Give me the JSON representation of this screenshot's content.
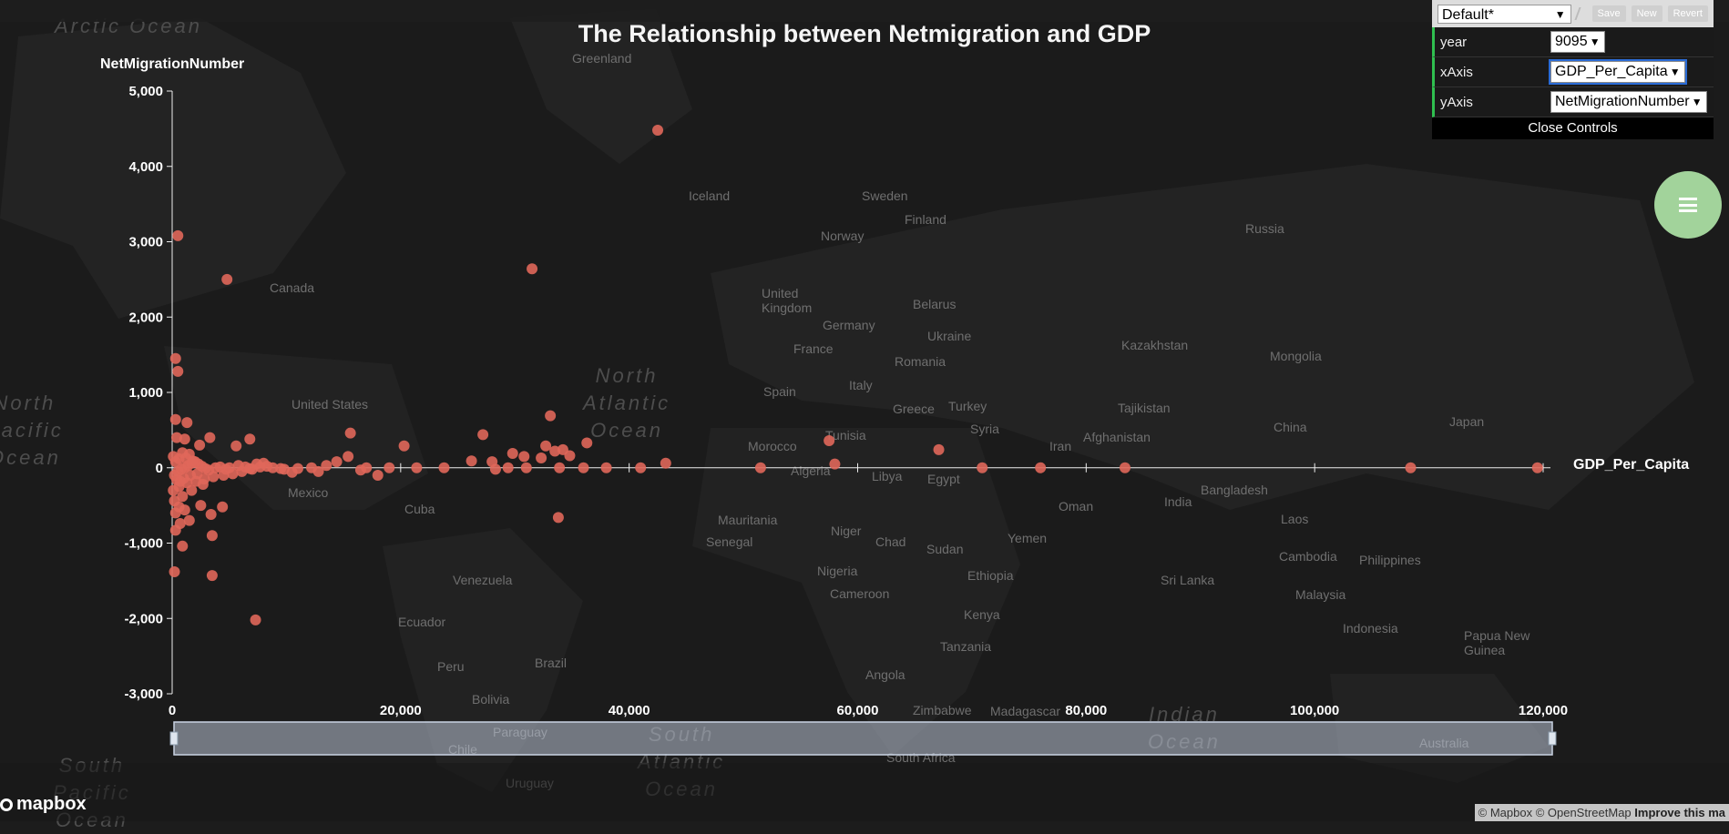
{
  "map": {
    "labels": [
      {
        "text": "Arctic Ocean",
        "cls": "ocean",
        "x": 60,
        "y": 14
      },
      {
        "text": "Greenland",
        "cls": "",
        "x": 628,
        "y": 56
      },
      {
        "text": "Iceland",
        "cls": "",
        "x": 756,
        "y": 207
      },
      {
        "text": "Sweden",
        "cls": "",
        "x": 946,
        "y": 207
      },
      {
        "text": "Finland",
        "cls": "",
        "x": 993,
        "y": 233
      },
      {
        "text": "Norway",
        "cls": "",
        "x": 901,
        "y": 251
      },
      {
        "text": "Russia",
        "cls": "",
        "x": 1367,
        "y": 243
      },
      {
        "text": "Canada",
        "cls": "",
        "x": 296,
        "y": 308
      },
      {
        "text": "United\nKingdom",
        "cls": "",
        "x": 836,
        "y": 314
      },
      {
        "text": "Belarus",
        "cls": "",
        "x": 1002,
        "y": 326
      },
      {
        "text": "Germany",
        "cls": "",
        "x": 903,
        "y": 349
      },
      {
        "text": "Ukraine",
        "cls": "",
        "x": 1018,
        "y": 361
      },
      {
        "text": "Kazakhstan",
        "cls": "",
        "x": 1231,
        "y": 371
      },
      {
        "text": "Mongolia",
        "cls": "",
        "x": 1394,
        "y": 383
      },
      {
        "text": "France",
        "cls": "",
        "x": 871,
        "y": 375
      },
      {
        "text": "Romania",
        "cls": "",
        "x": 982,
        "y": 389
      },
      {
        "text": "North\nAtlantic\nOcean",
        "cls": "ocean",
        "x": 640,
        "y": 398
      },
      {
        "text": "Spain",
        "cls": "",
        "x": 838,
        "y": 422
      },
      {
        "text": "Italy",
        "cls": "",
        "x": 932,
        "y": 415
      },
      {
        "text": "United States",
        "cls": "",
        "x": 320,
        "y": 436
      },
      {
        "text": "Greece",
        "cls": "",
        "x": 980,
        "y": 441
      },
      {
        "text": "Turkey",
        "cls": "",
        "x": 1041,
        "y": 438
      },
      {
        "text": "Tajikistan",
        "cls": "",
        "x": 1227,
        "y": 440
      },
      {
        "text": "Syria",
        "cls": "",
        "x": 1065,
        "y": 463
      },
      {
        "text": "China",
        "cls": "",
        "x": 1398,
        "y": 461
      },
      {
        "text": "Japan",
        "cls": "",
        "x": 1591,
        "y": 455
      },
      {
        "text": "Morocco",
        "cls": "",
        "x": 821,
        "y": 482
      },
      {
        "text": "Tunisia",
        "cls": "",
        "x": 906,
        "y": 470
      },
      {
        "text": "Iran",
        "cls": "",
        "x": 1152,
        "y": 482
      },
      {
        "text": "Afghanistan",
        "cls": "",
        "x": 1189,
        "y": 472
      },
      {
        "text": "North\nPacific\nOcean",
        "cls": "ocean",
        "x": -16,
        "y": 428
      },
      {
        "text": "Algeria",
        "cls": "",
        "x": 868,
        "y": 509
      },
      {
        "text": "Libya",
        "cls": "",
        "x": 957,
        "y": 515
      },
      {
        "text": "Egypt",
        "cls": "",
        "x": 1018,
        "y": 518
      },
      {
        "text": "Mexico",
        "cls": "",
        "x": 316,
        "y": 533
      },
      {
        "text": "Bangladesh",
        "cls": "",
        "x": 1318,
        "y": 530
      },
      {
        "text": "Oman",
        "cls": "",
        "x": 1162,
        "y": 548
      },
      {
        "text": "India",
        "cls": "",
        "x": 1278,
        "y": 543
      },
      {
        "text": "Cuba",
        "cls": "",
        "x": 444,
        "y": 551
      },
      {
        "text": "Laos",
        "cls": "",
        "x": 1406,
        "y": 562
      },
      {
        "text": "Mauritania",
        "cls": "",
        "x": 788,
        "y": 563
      },
      {
        "text": "Niger",
        "cls": "",
        "x": 912,
        "y": 575
      },
      {
        "text": "Chad",
        "cls": "",
        "x": 961,
        "y": 587
      },
      {
        "text": "Senegal",
        "cls": "",
        "x": 775,
        "y": 587
      },
      {
        "text": "Yemen",
        "cls": "",
        "x": 1106,
        "y": 583
      },
      {
        "text": "Sudan",
        "cls": "",
        "x": 1017,
        "y": 595
      },
      {
        "text": "Cambodia",
        "cls": "",
        "x": 1404,
        "y": 603
      },
      {
        "text": "Philippines",
        "cls": "",
        "x": 1492,
        "y": 607
      },
      {
        "text": "Nigeria",
        "cls": "",
        "x": 897,
        "y": 619
      },
      {
        "text": "Ethiopia",
        "cls": "",
        "x": 1062,
        "y": 624
      },
      {
        "text": "Venezuela",
        "cls": "",
        "x": 497,
        "y": 629
      },
      {
        "text": "Sri Lanka",
        "cls": "",
        "x": 1274,
        "y": 629
      },
      {
        "text": "Cameroon",
        "cls": "",
        "x": 911,
        "y": 644
      },
      {
        "text": "Malaysia",
        "cls": "",
        "x": 1422,
        "y": 645
      },
      {
        "text": "Ecuador",
        "cls": "",
        "x": 437,
        "y": 675
      },
      {
        "text": "Kenya",
        "cls": "",
        "x": 1058,
        "y": 667
      },
      {
        "text": "Indonesia",
        "cls": "",
        "x": 1474,
        "y": 682
      },
      {
        "text": "Papua New\nGuinea",
        "cls": "",
        "x": 1607,
        "y": 690
      },
      {
        "text": "Tanzania",
        "cls": "",
        "x": 1032,
        "y": 702
      },
      {
        "text": "Peru",
        "cls": "",
        "x": 480,
        "y": 724
      },
      {
        "text": "Brazil",
        "cls": "",
        "x": 587,
        "y": 720
      },
      {
        "text": "Angola",
        "cls": "",
        "x": 950,
        "y": 733
      },
      {
        "text": "Bolivia",
        "cls": "",
        "x": 518,
        "y": 760
      },
      {
        "text": "Zimbabwe",
        "cls": "",
        "x": 1002,
        "y": 772
      },
      {
        "text": "Madagascar",
        "cls": "",
        "x": 1087,
        "y": 773
      },
      {
        "text": "Indian\nOcean",
        "cls": "ocean",
        "x": 1260,
        "y": 770
      },
      {
        "text": "Paraguay",
        "cls": "",
        "x": 541,
        "y": 796
      },
      {
        "text": "South\nAtlantic\nOcean",
        "cls": "ocean",
        "x": 700,
        "y": 792
      },
      {
        "text": "Chile",
        "cls": "",
        "x": 492,
        "y": 815
      },
      {
        "text": "South Africa",
        "cls": "",
        "x": 973,
        "y": 824
      },
      {
        "text": "Australia",
        "cls": "",
        "x": 1558,
        "y": 808
      },
      {
        "text": "Uruguay",
        "cls": "",
        "x": 555,
        "y": 852
      },
      {
        "text": "South\nPacific\nOcean",
        "cls": "ocean",
        "x": 58,
        "y": 826
      }
    ]
  },
  "chart": {
    "title": "The Relationship between Netmigration and GDP",
    "ylabel": "NetMigrationNumber",
    "xlabel": "GDP_Per_Capita"
  },
  "chart_data": {
    "type": "scatter",
    "title": "The Relationship between Netmigration and GDP",
    "xlabel": "GDP_Per_Capita",
    "ylabel": "NetMigrationNumber",
    "xlim": [
      0,
      120000
    ],
    "ylim": [
      -3000,
      5000
    ],
    "xticks": [
      0,
      20000,
      40000,
      60000,
      80000,
      100000,
      120000
    ],
    "xtick_labels": [
      "0",
      "20,000",
      "40,000",
      "60,000",
      "80,000",
      "100,000",
      "120,000"
    ],
    "yticks": [
      -3000,
      -2000,
      -1000,
      0,
      1000,
      2000,
      3000,
      4000,
      5000
    ],
    "ytick_labels": [
      "-3,000",
      "-2,000",
      "-1,000",
      "0",
      "1,000",
      "2,000",
      "3,000",
      "4,000",
      "5,000"
    ],
    "point_color": "#e0675a",
    "points": [
      [
        42500,
        4480
      ],
      [
        500,
        3080
      ],
      [
        4800,
        2500
      ],
      [
        31500,
        2640
      ],
      [
        300,
        1450
      ],
      [
        500,
        1280
      ],
      [
        300,
        640
      ],
      [
        1300,
        600
      ],
      [
        400,
        400
      ],
      [
        1100,
        380
      ],
      [
        3300,
        400
      ],
      [
        6800,
        380
      ],
      [
        15600,
        460
      ],
      [
        33100,
        690
      ],
      [
        36300,
        330
      ],
      [
        57500,
        360
      ],
      [
        67100,
        240
      ],
      [
        5600,
        290
      ],
      [
        2400,
        300
      ],
      [
        20300,
        290
      ],
      [
        15400,
        150
      ],
      [
        27200,
        440
      ],
      [
        29800,
        190
      ],
      [
        30800,
        150
      ],
      [
        32700,
        290
      ],
      [
        33500,
        220
      ],
      [
        34200,
        240
      ],
      [
        34800,
        160
      ],
      [
        32300,
        130
      ],
      [
        26200,
        90
      ],
      [
        28000,
        80
      ],
      [
        14400,
        80
      ],
      [
        13500,
        30
      ],
      [
        9500,
        -10
      ],
      [
        11000,
        -10
      ],
      [
        12200,
        0
      ],
      [
        17000,
        0
      ],
      [
        19000,
        0
      ],
      [
        21400,
        0
      ],
      [
        23800,
        0
      ],
      [
        28300,
        -20
      ],
      [
        29400,
        0
      ],
      [
        31000,
        0
      ],
      [
        33900,
        0
      ],
      [
        36000,
        0
      ],
      [
        38000,
        0
      ],
      [
        41000,
        0
      ],
      [
        43200,
        60
      ],
      [
        51500,
        0
      ],
      [
        58000,
        50
      ],
      [
        70900,
        0
      ],
      [
        76000,
        0
      ],
      [
        83400,
        0
      ],
      [
        108400,
        0
      ],
      [
        119500,
        0
      ],
      [
        10500,
        -60
      ],
      [
        18000,
        -100
      ],
      [
        33800,
        -660
      ],
      [
        7300,
        -2020
      ],
      [
        3500,
        -1430
      ],
      [
        200,
        -1380
      ],
      [
        3500,
        -900
      ],
      [
        900,
        -1040
      ],
      [
        300,
        -830
      ],
      [
        700,
        -740
      ],
      [
        1500,
        -700
      ],
      [
        2500,
        -500
      ],
      [
        4400,
        -520
      ],
      [
        3400,
        -620
      ],
      [
        200,
        -440
      ],
      [
        900,
        -380
      ],
      [
        1700,
        -300
      ],
      [
        100,
        -300
      ],
      [
        600,
        -250
      ],
      [
        1300,
        -200
      ],
      [
        2100,
        -180
      ],
      [
        2800,
        -150
      ],
      [
        3600,
        -120
      ],
      [
        4500,
        -100
      ],
      [
        5300,
        -80
      ],
      [
        6100,
        -50
      ],
      [
        7000,
        -20
      ],
      [
        7700,
        10
      ],
      [
        8300,
        20
      ],
      [
        200,
        -100
      ],
      [
        500,
        -50
      ],
      [
        800,
        -20
      ],
      [
        1100,
        0
      ],
      [
        1400,
        30
      ],
      [
        1700,
        60
      ],
      [
        2000,
        80
      ],
      [
        2300,
        50
      ],
      [
        2600,
        20
      ],
      [
        2900,
        -10
      ],
      [
        3200,
        -30
      ],
      [
        3800,
        0
      ],
      [
        4200,
        10
      ],
      [
        4700,
        -20
      ],
      [
        5000,
        0
      ],
      [
        5800,
        30
      ],
      [
        6400,
        10
      ],
      [
        6800,
        -10
      ],
      [
        7400,
        50
      ],
      [
        8000,
        60
      ],
      [
        8800,
        0
      ],
      [
        9800,
        -20
      ],
      [
        12800,
        -50
      ],
      [
        16500,
        -30
      ],
      [
        100,
        150
      ],
      [
        300,
        80
      ],
      [
        600,
        120
      ],
      [
        900,
        200
      ],
      [
        1200,
        130
      ],
      [
        1500,
        180
      ],
      [
        1800,
        90
      ],
      [
        400,
        -160
      ],
      [
        700,
        -180
      ],
      [
        1000,
        -140
      ],
      [
        1600,
        -100
      ],
      [
        2200,
        -80
      ],
      [
        2700,
        -220
      ],
      [
        300,
        -600
      ],
      [
        600,
        -520
      ],
      [
        1100,
        -560
      ]
    ]
  },
  "controls": {
    "preset_value": "Default*",
    "save_label": "Save",
    "new_label": "New",
    "revert_label": "Revert",
    "rows": [
      {
        "label": "year",
        "value": "9095"
      },
      {
        "label": "xAxis",
        "value": "GDP_Per_Capita"
      },
      {
        "label": "yAxis",
        "value": "NetMigrationNumber"
      }
    ],
    "close_label": "Close Controls"
  },
  "logo_text": "mapbox",
  "attribution": {
    "text": "© Mapbox © OpenStreetMap",
    "improve": "Improve this ma"
  },
  "colors": {
    "fab": "#a2d39b",
    "accent_bar": "#2fbf4f",
    "points": "#e0675a"
  }
}
